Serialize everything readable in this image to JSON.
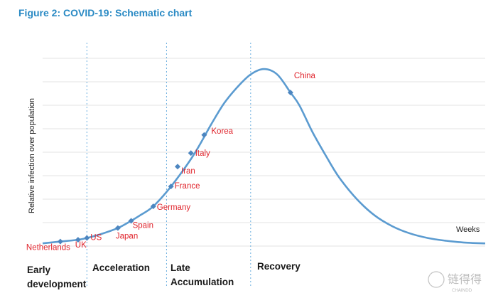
{
  "figure_title": "Figure 2: COVID-19: Schematic chart",
  "chart_data": {
    "type": "line",
    "title": "Figure 2: COVID-19: Schematic chart",
    "ylabel": "Relative infection over population",
    "xlabel": "Weeks",
    "xlim": [
      0,
      100
    ],
    "ylim": [
      0,
      100
    ],
    "grid": true,
    "series": [
      {
        "x": [
          0,
          4,
          8,
          10,
          13,
          17,
          20,
          22,
          25,
          29,
          34,
          38,
          41,
          44,
          47,
          50,
          53,
          56,
          58,
          61,
          64,
          67,
          71,
          75,
          79,
          83,
          87,
          91,
          95,
          100
        ],
        "y": [
          1.5,
          2.5,
          3.5,
          4.5,
          6.5,
          10,
          14,
          17,
          22,
          33,
          50,
          67,
          79,
          88,
          95,
          98,
          95,
          85,
          78,
          63,
          50,
          38,
          26,
          17,
          11,
          7,
          4.5,
          3,
          2,
          1.5
        ]
      }
    ],
    "points": [
      {
        "label": "Netherlands",
        "x": 4,
        "y": 2.5
      },
      {
        "label": "UK",
        "x": 8,
        "y": 3.5
      },
      {
        "label": "US",
        "x": 10,
        "y": 4.5
      },
      {
        "label": "Japan",
        "x": 17,
        "y": 10
      },
      {
        "label": "Spain",
        "x": 20,
        "y": 14
      },
      {
        "label": "Germany",
        "x": 25,
        "y": 22
      },
      {
        "label": "France",
        "x": 29,
        "y": 33
      },
      {
        "label": "Iran",
        "x": 30.5,
        "y": 44
      },
      {
        "label": "Italy",
        "x": 33.5,
        "y": 51.5
      },
      {
        "label": "Korea",
        "x": 36.5,
        "y": 61.5
      },
      {
        "label": "China",
        "x": 56,
        "y": 85
      }
    ],
    "dividers_x": [
      10,
      28,
      47
    ],
    "phases": [
      "Early development",
      "Acceleration",
      "Late Accumulation",
      "Recovery"
    ]
  },
  "watermark": {
    "text": "链得得",
    "subtext": "CHAINDD"
  },
  "colors": {
    "title": "#2a8ac4",
    "curve": "#5b9bd0",
    "country_label": "#e0242c"
  }
}
